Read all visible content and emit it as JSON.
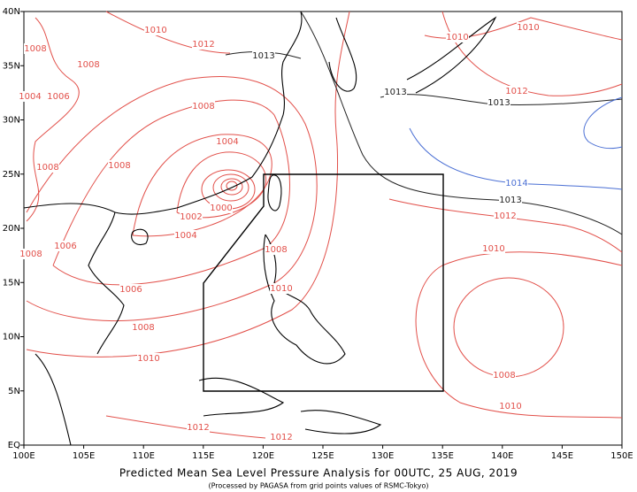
{
  "map": {
    "title": "Predicted Mean Sea Level Pressure Analysis for 00UTC, 25 AUG, 2019",
    "subtitle": "(Processed by PAGASA from grid points values of RSMC-Tokyo)",
    "lon_ticks": [
      {
        "value": 100,
        "label": "100E"
      },
      {
        "value": 105,
        "label": "105E"
      },
      {
        "value": 110,
        "label": "110E"
      },
      {
        "value": 115,
        "label": "115E"
      },
      {
        "value": 120,
        "label": "120E"
      },
      {
        "value": 125,
        "label": "125E"
      },
      {
        "value": 130,
        "label": "130E"
      },
      {
        "value": 135,
        "label": "135E"
      },
      {
        "value": 140,
        "label": "140E"
      },
      {
        "value": 145,
        "label": "145E"
      },
      {
        "value": 150,
        "label": "150E"
      }
    ],
    "lat_ticks": [
      {
        "value": 0,
        "label": "EQ"
      },
      {
        "value": 5,
        "label": "5N"
      },
      {
        "value": 10,
        "label": "10N"
      },
      {
        "value": 15,
        "label": "15N"
      },
      {
        "value": 20,
        "label": "20N"
      },
      {
        "value": 25,
        "label": "25N"
      },
      {
        "value": 30,
        "label": "30N"
      },
      {
        "value": 35,
        "label": "35N"
      },
      {
        "value": 40,
        "label": "40N"
      }
    ],
    "isobar_labels": [
      "1010",
      "1012",
      "1013",
      "1008",
      "1008",
      "1006",
      "1004",
      "1008",
      "1004",
      "1008",
      "1008",
      "1000",
      "1002",
      "1004",
      "1006",
      "1008",
      "1008",
      "1006",
      "1010",
      "1008",
      "1010",
      "1012",
      "1012",
      "1010",
      "1010",
      "1013",
      "1012",
      "1013",
      "1014",
      "1013",
      "1012",
      "1010",
      "1008",
      "1010"
    ]
  }
}
